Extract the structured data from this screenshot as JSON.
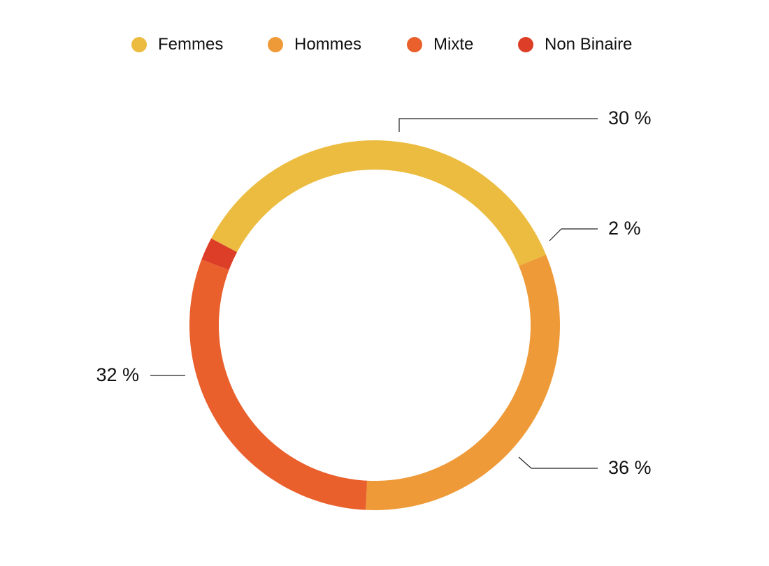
{
  "chart_data": {
    "type": "pie",
    "variant": "donut",
    "title": "",
    "legend_position": "top",
    "categories": [
      "Femmes",
      "Hommes",
      "Mixte",
      "Non Binaire"
    ],
    "values": [
      36,
      32,
      30,
      2
    ],
    "value_labels": [
      "36 %",
      "32 %",
      "30 %",
      "2 %"
    ],
    "colors": [
      "#ECBC40",
      "#EF9A38",
      "#E9602D",
      "#DC3E27"
    ]
  }
}
